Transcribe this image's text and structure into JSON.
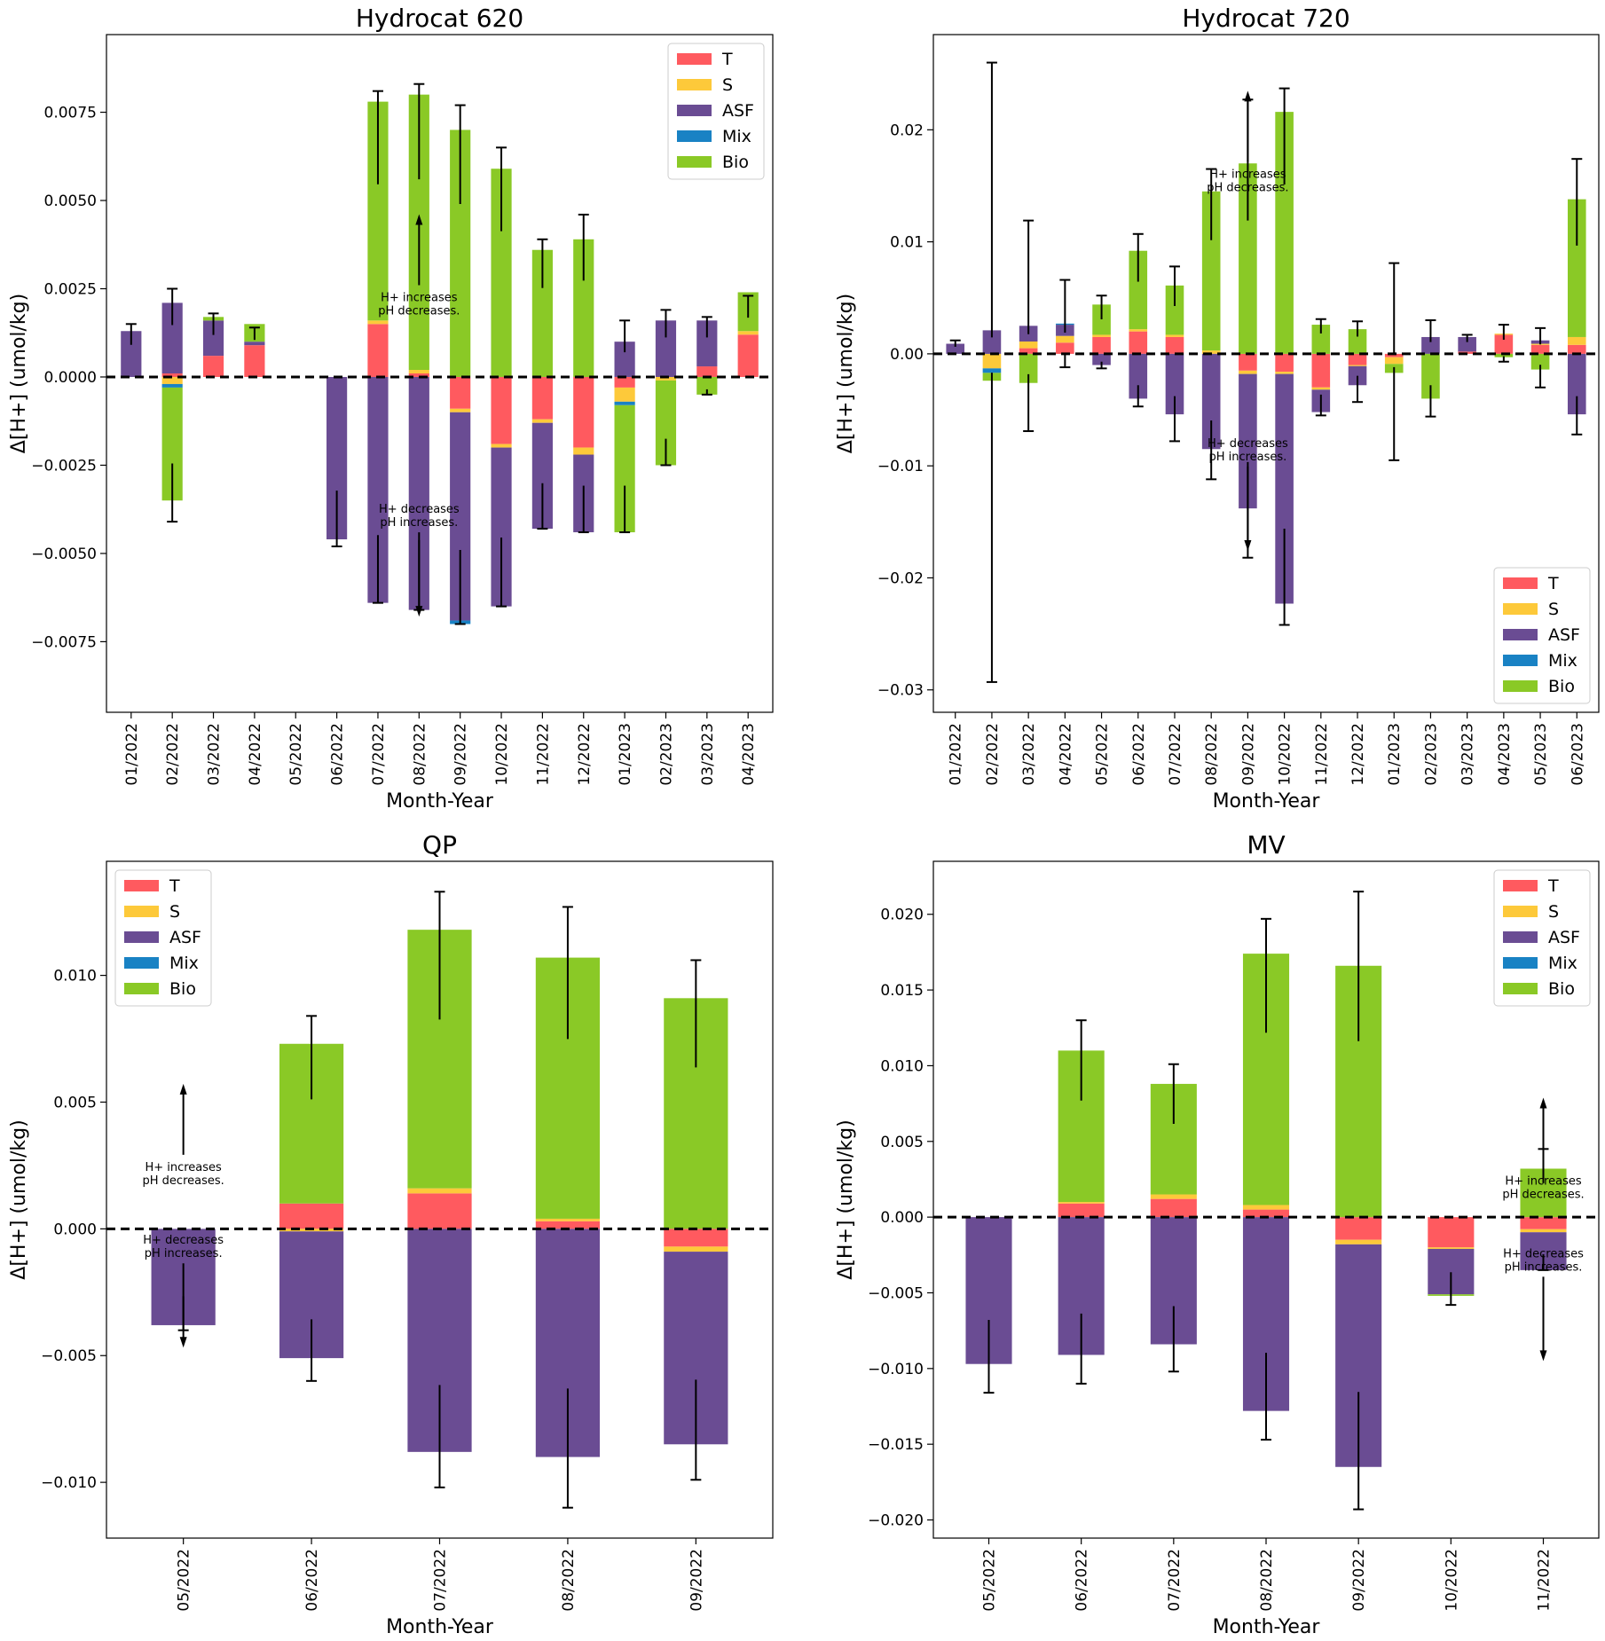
{
  "figure": {
    "x_label": "Month-Year",
    "y_label": "Δ[H+] (umol/kg)"
  },
  "colors": {
    "T": "#ff5a5f",
    "S": "#fdc93a",
    "ASF": "#6a4c93",
    "Mix": "#1982c4",
    "Bio": "#8ac926"
  },
  "annotations": {
    "increase": [
      "H+ increases",
      "pH decreases."
    ],
    "decrease": [
      "H+ decreases",
      "pH increases."
    ]
  },
  "legend_labels": [
    "T",
    "S",
    "ASF",
    "Mix",
    "Bio"
  ],
  "chart_data": [
    {
      "type": "bar",
      "stacked": true,
      "title": "Hydrocat 620",
      "xlabel": "Month-Year",
      "ylabel": "Δ[H+] (umol/kg)",
      "ylim": [
        -0.0095,
        0.0097
      ],
      "yticks": [
        -0.0075,
        -0.005,
        -0.0025,
        0.0,
        0.0025,
        0.005,
        0.0075
      ],
      "ytick_labels": [
        "−0.0075",
        "−0.0050",
        "−0.0025",
        "0.0000",
        "0.0025",
        "0.0050",
        "0.0075"
      ],
      "legend": "top-right",
      "categories": [
        "01/2022",
        "02/2022",
        "03/2022",
        "04/2022",
        "05/2022",
        "06/2022",
        "07/2022",
        "08/2022",
        "09/2022",
        "10/2022",
        "11/2022",
        "12/2022",
        "01/2023",
        "02/2023",
        "03/2023",
        "04/2023"
      ],
      "series": [
        {
          "name": "T",
          "values": [
            0,
            0.0001,
            0.0006,
            0.0009,
            0,
            0,
            0.0015,
            0.0001,
            -0.0009,
            -0.0019,
            -0.0012,
            -0.002,
            -0.0003,
            0,
            0.0003,
            0.0012
          ]
        },
        {
          "name": "S",
          "values": [
            0,
            -0.0002,
            0,
            0,
            0,
            0,
            0.0001,
            0.0001,
            -0.0001,
            -0.0001,
            -0.0001,
            -0.0002,
            -0.0004,
            -0.0001,
            0,
            0.0001
          ]
        },
        {
          "name": "ASF",
          "values": [
            0.0013,
            0.002,
            0.001,
            0.0001,
            0,
            -0.0046,
            -0.0064,
            -0.0066,
            -0.0059,
            -0.0045,
            -0.003,
            -0.0022,
            0.001,
            0.0016,
            0.0013,
            0
          ]
        },
        {
          "name": "Mix",
          "values": [
            0,
            -0.0001,
            0,
            0,
            0,
            0,
            0,
            0,
            -0.0001,
            0,
            0,
            0,
            -0.0001,
            0,
            0,
            0
          ]
        },
        {
          "name": "Bio",
          "values": [
            0,
            -0.0032,
            0.0001,
            0.0005,
            0,
            0,
            0.0062,
            0.0078,
            0.007,
            0.0059,
            0.0036,
            0.0039,
            -0.0036,
            -0.0024,
            -0.0005,
            0.0011
          ]
        }
      ],
      "error_bars": [
        {
          "pos": 0.0015,
          "neg": null
        },
        {
          "pos": 0.0025,
          "neg": -0.0041
        },
        {
          "pos": 0.0018,
          "neg": null
        },
        {
          "pos": 0.0014,
          "neg": null
        },
        {
          "pos": null,
          "neg": null
        },
        {
          "pos": null,
          "neg": -0.0048
        },
        {
          "pos": 0.0081,
          "neg": -0.0064
        },
        {
          "pos": 0.0083,
          "neg": -0.0066
        },
        {
          "pos": 0.0077,
          "neg": -0.007
        },
        {
          "pos": 0.0065,
          "neg": -0.0065
        },
        {
          "pos": 0.0039,
          "neg": -0.0043
        },
        {
          "pos": 0.0046,
          "neg": -0.0044
        },
        {
          "pos": 0.0016,
          "neg": -0.0044
        },
        {
          "pos": 0.0019,
          "neg": -0.0025
        },
        {
          "pos": 0.0017,
          "neg": -0.0005
        },
        {
          "pos": 0.0023,
          "neg": null
        }
      ],
      "annotation_category": "08/2022",
      "annotation_values": [
        0.0023,
        -0.004
      ]
    },
    {
      "type": "bar",
      "stacked": true,
      "title": "Hydrocat 720",
      "xlabel": "Month-Year",
      "ylabel": "Δ[H+] (umol/kg)",
      "ylim": [
        -0.032,
        0.0285
      ],
      "yticks": [
        -0.03,
        -0.02,
        -0.01,
        0.0,
        0.01,
        0.02
      ],
      "ytick_labels": [
        "−0.03",
        "−0.02",
        "−0.01",
        "0.00",
        "0.01",
        "0.02"
      ],
      "legend": "bottom-right",
      "categories": [
        "01/2022",
        "02/2022",
        "03/2022",
        "04/2022",
        "05/2022",
        "06/2022",
        "07/2022",
        "08/2022",
        "09/2022",
        "10/2022",
        "11/2022",
        "12/2022",
        "01/2023",
        "02/2023",
        "03/2023",
        "04/2023",
        "05/2023",
        "06/2023"
      ],
      "series": [
        {
          "name": "T",
          "values": [
            0,
            0,
            0.0005,
            0.001,
            0.0015,
            0.002,
            0.0015,
            0,
            -0.0015,
            -0.0016,
            -0.003,
            -0.001,
            -0.0003,
            0,
            0.0002,
            0.0017,
            0.0008,
            0.0008
          ]
        },
        {
          "name": "S",
          "values": [
            0,
            -0.0013,
            0.0006,
            0.0006,
            0.0002,
            0.0002,
            0.0002,
            0.0003,
            -0.0003,
            -0.0002,
            -0.0002,
            -0.0001,
            -0.0006,
            0,
            0,
            0.0001,
            0.0001,
            0.0007
          ]
        },
        {
          "name": "ASF",
          "values": [
            0.0009,
            0.0021,
            0.0014,
            0.001,
            -0.001,
            -0.004,
            -0.0054,
            -0.0085,
            -0.012,
            -0.0205,
            -0.002,
            -0.0017,
            0,
            0.0015,
            0.0013,
            0,
            0.0003,
            -0.0054
          ]
        },
        {
          "name": "Mix",
          "values": [
            0,
            -0.0004,
            0,
            0.0001,
            0,
            0,
            0,
            0,
            0,
            0,
            0,
            0,
            0,
            0,
            0,
            0,
            0,
            0
          ]
        },
        {
          "name": "Bio",
          "values": [
            0,
            -0.0007,
            -0.0026,
            0,
            0.0027,
            0.007,
            0.0044,
            0.0142,
            0.017,
            0.0216,
            0.0026,
            0.0022,
            -0.0008,
            -0.004,
            0,
            -0.0003,
            -0.0014,
            0.0123
          ]
        }
      ],
      "error_bars": [
        {
          "pos": 0.0012,
          "neg": null
        },
        {
          "pos": 0.026,
          "neg": -0.0293
        },
        {
          "pos": 0.0119,
          "neg": -0.0069
        },
        {
          "pos": 0.0066,
          "neg": -0.0012
        },
        {
          "pos": 0.0052,
          "neg": -0.0013
        },
        {
          "pos": 0.0107,
          "neg": -0.0047
        },
        {
          "pos": 0.0078,
          "neg": -0.0078
        },
        {
          "pos": 0.0165,
          "neg": -0.0112
        },
        {
          "pos": 0.0227,
          "neg": -0.0182
        },
        {
          "pos": 0.0237,
          "neg": -0.0242
        },
        {
          "pos": 0.0031,
          "neg": -0.0055
        },
        {
          "pos": 0.0029,
          "neg": -0.0043
        },
        {
          "pos": 0.0081,
          "neg": -0.0095
        },
        {
          "pos": 0.003,
          "neg": -0.0056
        },
        {
          "pos": 0.0017,
          "neg": null
        },
        {
          "pos": 0.0026,
          "neg": -0.0007
        },
        {
          "pos": 0.0023,
          "neg": -0.003
        },
        {
          "pos": 0.0174,
          "neg": -0.0072
        }
      ],
      "annotation_category": "09/2022",
      "annotation_values": [
        0.0162,
        -0.0088
      ]
    },
    {
      "type": "bar",
      "stacked": true,
      "title": "QP",
      "xlabel": "Month-Year",
      "ylabel": "Δ[H+] (umol/kg)",
      "ylim": [
        -0.0122,
        0.0145
      ],
      "yticks": [
        -0.01,
        -0.005,
        0.0,
        0.005,
        0.01
      ],
      "ytick_labels": [
        "−0.010",
        "−0.005",
        "0.000",
        "0.005",
        "0.010"
      ],
      "legend": "top-left",
      "categories": [
        "05/2022",
        "06/2022",
        "07/2022",
        "08/2022",
        "09/2022"
      ],
      "series": [
        {
          "name": "T",
          "values": [
            0,
            0.001,
            0.0014,
            0.0003,
            -0.0007
          ]
        },
        {
          "name": "S",
          "values": [
            0,
            -0.0001,
            0.0002,
            0.0001,
            -0.0002
          ]
        },
        {
          "name": "ASF",
          "values": [
            -0.0038,
            -0.005,
            -0.0088,
            -0.009,
            -0.0076
          ]
        },
        {
          "name": "Mix",
          "values": [
            0,
            0,
            0,
            0,
            0
          ]
        },
        {
          "name": "Bio",
          "values": [
            0,
            0.0063,
            0.0102,
            0.0103,
            0.0091
          ]
        }
      ],
      "error_bars": [
        {
          "pos": null,
          "neg": -0.004
        },
        {
          "pos": 0.0084,
          "neg": -0.006
        },
        {
          "pos": 0.0133,
          "neg": -0.0102
        },
        {
          "pos": 0.0127,
          "neg": -0.011
        },
        {
          "pos": 0.0106,
          "neg": -0.0099
        }
      ],
      "annotation_category": "05/2022",
      "annotation_values": [
        0.0025,
        -0.0008
      ]
    },
    {
      "type": "bar",
      "stacked": true,
      "title": "MV",
      "xlabel": "Month-Year",
      "ylabel": "Δ[H+] (umol/kg)",
      "ylim": [
        -0.0212,
        0.0235
      ],
      "yticks": [
        -0.02,
        -0.015,
        -0.01,
        -0.005,
        0.0,
        0.005,
        0.01,
        0.015,
        0.02
      ],
      "ytick_labels": [
        "−0.020",
        "−0.015",
        "−0.010",
        "−0.005",
        "0.000",
        "0.005",
        "0.010",
        "0.015",
        "0.020"
      ],
      "legend": "top-right",
      "categories": [
        "05/2022",
        "06/2022",
        "07/2022",
        "08/2022",
        "09/2022",
        "10/2022",
        "11/2022"
      ],
      "series": [
        {
          "name": "T",
          "values": [
            0,
            0.0009,
            0.0012,
            0.0005,
            -0.0015,
            -0.002,
            -0.0008
          ]
        },
        {
          "name": "S",
          "values": [
            0,
            0.0001,
            0.0003,
            0.0003,
            -0.0003,
            -0.0001,
            -0.0002
          ]
        },
        {
          "name": "ASF",
          "values": [
            -0.0097,
            -0.0091,
            -0.0084,
            -0.0128,
            -0.0147,
            -0.003,
            -0.0025
          ]
        },
        {
          "name": "Mix",
          "values": [
            0,
            0,
            0,
            0,
            0,
            0,
            0
          ]
        },
        {
          "name": "Bio",
          "values": [
            0,
            0.01,
            0.0073,
            0.0166,
            0.0166,
            -0.0001,
            0.0032
          ]
        }
      ],
      "error_bars": [
        {
          "pos": null,
          "neg": -0.0116
        },
        {
          "pos": 0.013,
          "neg": -0.011
        },
        {
          "pos": 0.0101,
          "neg": -0.0102
        },
        {
          "pos": 0.0197,
          "neg": -0.0147
        },
        {
          "pos": 0.0215,
          "neg": -0.0193
        },
        {
          "pos": null,
          "neg": -0.0058
        },
        {
          "pos": 0.0045,
          "neg": -0.0035
        }
      ],
      "annotation_category": "11/2022",
      "annotation_values": [
        0.0025,
        -0.003
      ]
    }
  ]
}
